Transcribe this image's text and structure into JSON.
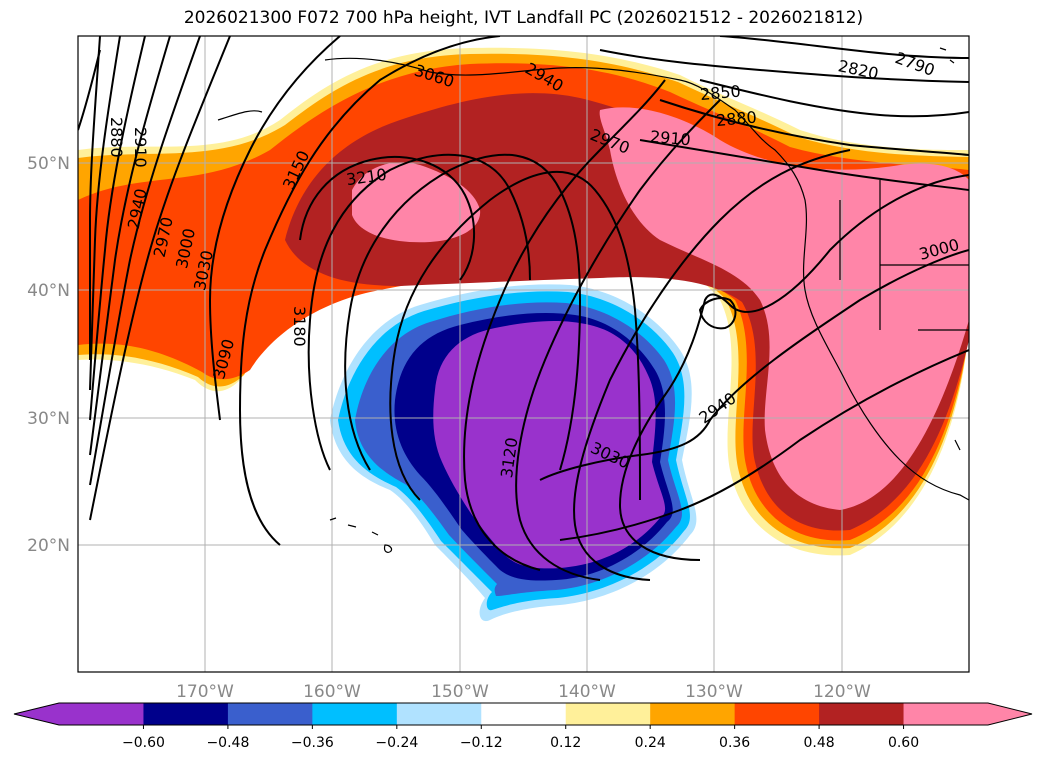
{
  "title": "2026021300 F072 700 hPa height, IVT Landfall PC (2026021512 - 2026021812)",
  "map": {
    "lon_labels": [
      "170°W",
      "160°W",
      "150°W",
      "140°W",
      "130°W",
      "120°W"
    ],
    "lat_labels": [
      "50°N",
      "40°N",
      "30°N",
      "20°N"
    ],
    "contour_labels": [
      "2880",
      "2910",
      "2940",
      "2970",
      "3000",
      "3030",
      "3090",
      "3150",
      "3210",
      "3180",
      "3060",
      "2940",
      "2970",
      "2910",
      "2850",
      "2880",
      "2820",
      "2790",
      "3000",
      "2940",
      "3030",
      "3120"
    ]
  },
  "colorbar": {
    "colors": [
      "#9932cc",
      "#00008b",
      "#3a5fcd",
      "#00bfff",
      "#b0e2ff",
      "#ffffff",
      "#fff09a",
      "#ffa500",
      "#ff4500",
      "#b22222",
      "#ff85a8"
    ],
    "tick_labels": [
      "−0.60",
      "−0.48",
      "−0.36",
      "−0.24",
      "−0.12",
      "0.12",
      "0.24",
      "0.36",
      "0.48",
      "0.60"
    ]
  }
}
